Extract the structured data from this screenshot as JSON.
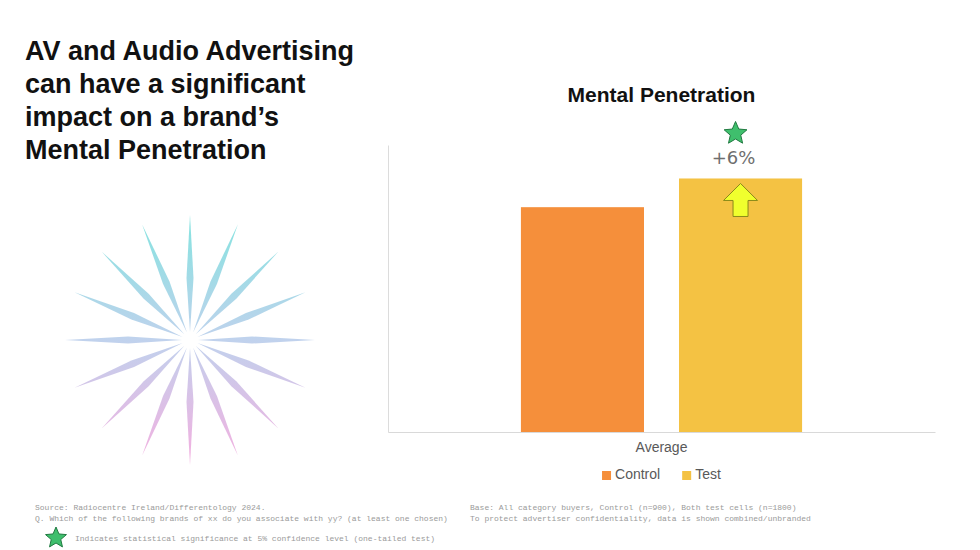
{
  "headline": [
    "AV and Audio Advertising",
    "can have a significant",
    "impact on a brand’s",
    "Mental Penetration"
  ],
  "chart_data": {
    "type": "bar",
    "title": "Mental Penetration",
    "categories": [
      "Average"
    ],
    "series": [
      {
        "name": "Control",
        "color": "#f58f3b",
        "values": [
          47
        ]
      },
      {
        "name": "Test",
        "color": "#f4c243",
        "values": [
          53
        ]
      }
    ],
    "ylim": [
      0,
      60
    ],
    "annotation": "+6%",
    "legend": "bottom",
    "grid": false,
    "tick_labels": "x"
  },
  "footnotes": {
    "source": "Source: Radiocentre Ireland/Differentology 2024.",
    "question": "Q. Which of the following brands of xx do you associate with yy? (at least one chosen)",
    "significance": "Indicates statistical significance at 5% confidence level (one-tailed test)",
    "base": "Base: All category buyers, Control (n=900), Both test cells (n=1800)",
    "confidentiality": "To protect advertiser confidentiality, data is shown combined/unbranded"
  }
}
